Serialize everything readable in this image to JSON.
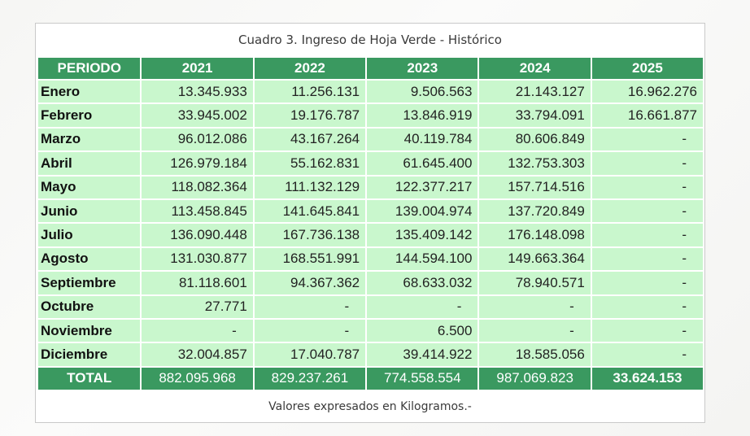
{
  "caption": "Cuadro 3. Ingreso de Hoja Verde - Histórico",
  "columns": [
    "PERIODO",
    "2021",
    "2022",
    "2023",
    "2024",
    "2025"
  ],
  "rows": [
    {
      "month": "Enero",
      "values": [
        "13.345.933",
        "11.256.131",
        "9.506.563",
        "21.143.127",
        "16.962.276"
      ]
    },
    {
      "month": "Febrero",
      "values": [
        "33.945.002",
        "19.176.787",
        "13.846.919",
        "33.794.091",
        "16.661.877"
      ]
    },
    {
      "month": "Marzo",
      "values": [
        "96.012.086",
        "43.167.264",
        "40.119.784",
        "80.606.849",
        "-"
      ]
    },
    {
      "month": "Abril",
      "values": [
        "126.979.184",
        "55.162.831",
        "61.645.400",
        "132.753.303",
        "-"
      ]
    },
    {
      "month": "Mayo",
      "values": [
        "118.082.364",
        "111.132.129",
        "122.377.217",
        "157.714.516",
        "-"
      ]
    },
    {
      "month": "Junio",
      "values": [
        "113.458.845",
        "141.645.841",
        "139.004.974",
        "137.720.849",
        "-"
      ]
    },
    {
      "month": "Julio",
      "values": [
        "136.090.448",
        "167.736.138",
        "135.409.142",
        "176.148.098",
        "-"
      ]
    },
    {
      "month": "Agosto",
      "values": [
        "131.030.877",
        "168.551.991",
        "144.594.100",
        "149.663.364",
        "-"
      ]
    },
    {
      "month": "Septiembre",
      "values": [
        "81.118.601",
        "94.367.362",
        "68.633.032",
        "78.940.571",
        "-"
      ]
    },
    {
      "month": "Octubre",
      "values": [
        "27.771",
        "-",
        "-",
        "-",
        "-"
      ]
    },
    {
      "month": "Noviembre",
      "values": [
        "-",
        "-",
        "6.500",
        "-",
        "-"
      ]
    },
    {
      "month": "Diciembre",
      "values": [
        "32.004.857",
        "17.040.787",
        "39.414.922",
        "18.585.056",
        "-"
      ]
    }
  ],
  "total": {
    "label": "TOTAL",
    "values": [
      "882.095.968",
      "829.237.261",
      "774.558.554",
      "987.069.823",
      "33.624.153"
    ]
  },
  "footnote": "Valores expresados en Kilogramos.-",
  "colors": {
    "header_green": "#3a9960",
    "cell_green": "#c9f7cd"
  }
}
